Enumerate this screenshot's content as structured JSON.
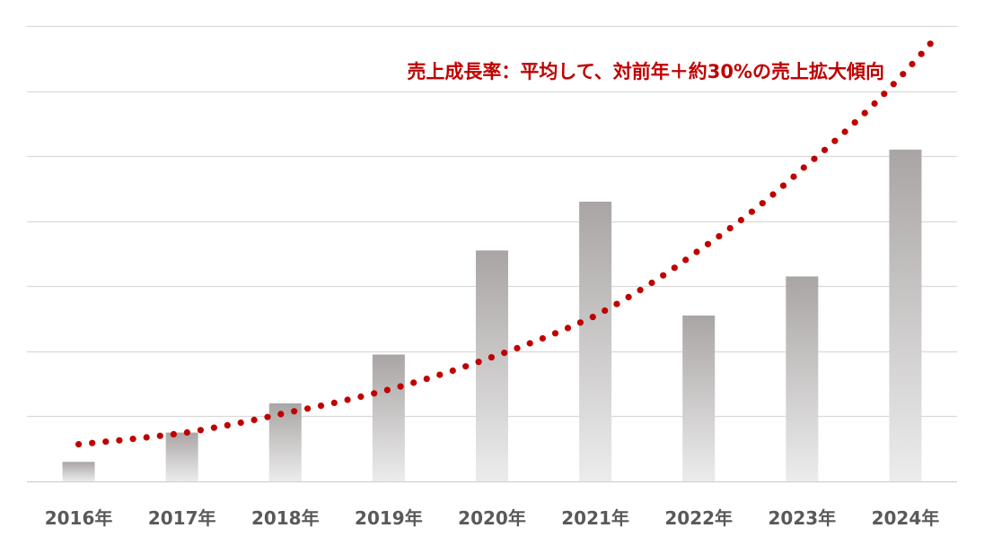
{
  "chart_data": {
    "type": "bar",
    "categories": [
      "2016年",
      "2017年",
      "2018年",
      "2019年",
      "2020年",
      "2021年",
      "2022年",
      "2023年",
      "2024年"
    ],
    "values": [
      0.6,
      1.5,
      2.4,
      3.9,
      7.1,
      8.6,
      5.1,
      6.3,
      10.2
    ],
    "ylim": [
      0,
      14
    ],
    "grid": true,
    "bar_gradient": [
      "#aaa5a5",
      "#ececec"
    ],
    "trend": {
      "style": "dotted",
      "color": "#c00000",
      "values": [
        1.14,
        1.48,
        2.1,
        2.82,
        3.82,
        5.09,
        7.1,
        9.6,
        12.6
      ]
    },
    "annotation": "売上成長率：平均して、対前年＋約30%の売上拡大傾向"
  }
}
